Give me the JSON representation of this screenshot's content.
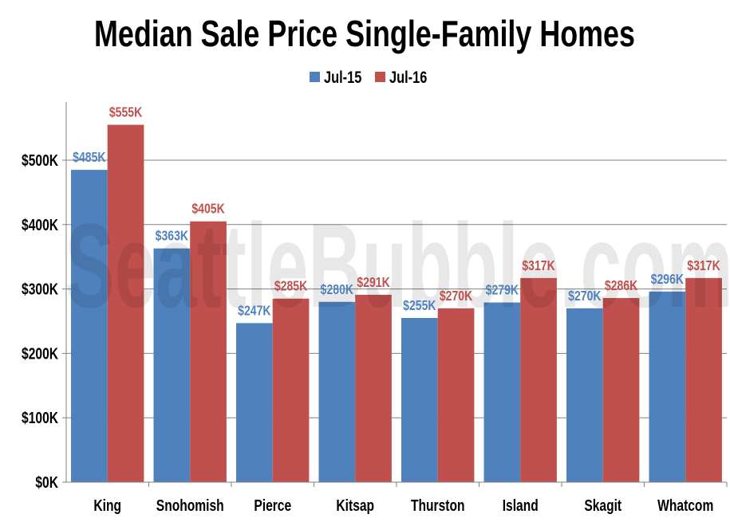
{
  "chart_data": {
    "type": "bar",
    "title": "Median Sale Price Single-Family Homes",
    "watermark": "SeattleBubble.com",
    "categories": [
      "King",
      "Snohomish",
      "Pierce",
      "Kitsap",
      "Thurston",
      "Island",
      "Skagit",
      "Whatcom"
    ],
    "series": [
      {
        "name": "Jul-15",
        "color": "#4f81bd",
        "values": [
          485,
          363,
          247,
          280,
          255,
          279,
          270,
          296
        ],
        "labels": [
          "$485K",
          "$363K",
          "$247K",
          "$280K",
          "$255K",
          "$279K",
          "$270K",
          "$296K"
        ]
      },
      {
        "name": "Jul-16",
        "color": "#c0504d",
        "values": [
          555,
          405,
          285,
          291,
          270,
          317,
          286,
          317
        ],
        "labels": [
          "$555K",
          "$405K",
          "$285K",
          "$291K",
          "$270K",
          "$317K",
          "$286K",
          "$317K"
        ]
      }
    ],
    "unit": "thousands USD",
    "ylim": [
      0,
      600
    ],
    "yticks": [
      0,
      100,
      200,
      300,
      400,
      500
    ],
    "ytick_labels": [
      "$0K",
      "$100K",
      "$200K",
      "$300K",
      "$400K",
      "$500K"
    ],
    "grid": true,
    "legend": "top-center"
  }
}
